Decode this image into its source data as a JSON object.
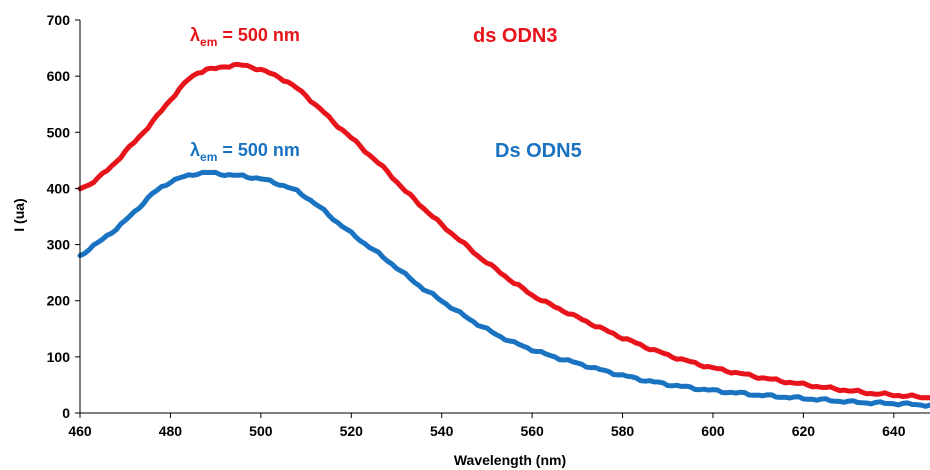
{
  "chart_data": {
    "type": "line",
    "title": "",
    "xlabel": "Wavelength (nm)",
    "ylabel": "I (ua)",
    "xlim": [
      460,
      648
    ],
    "ylim": [
      0,
      700
    ],
    "x_ticks": [
      "460",
      "480",
      "500",
      "520",
      "540",
      "560",
      "580",
      "600",
      "620",
      "640"
    ],
    "y_ticks": [
      "0",
      "100",
      "200",
      "300",
      "400",
      "500",
      "600",
      "700"
    ],
    "grid": false,
    "legend": "none",
    "series": [
      {
        "name": "ds ODN3",
        "color": "#e8141b",
        "x": [
          460,
          462,
          464,
          466,
          468,
          470,
          472,
          474,
          476,
          478,
          480,
          482,
          484,
          486,
          488,
          490,
          492,
          494,
          496,
          498,
          500,
          502,
          504,
          506,
          508,
          510,
          512,
          514,
          516,
          518,
          520,
          524,
          528,
          532,
          536,
          540,
          544,
          548,
          552,
          556,
          560,
          564,
          568,
          572,
          576,
          580,
          585,
          590,
          595,
          600,
          605,
          610,
          615,
          620,
          625,
          630,
          635,
          640,
          645,
          648
        ],
        "y": [
          400,
          407,
          418,
          432,
          448,
          465,
          482,
          500,
          518,
          538,
          558,
          577,
          594,
          606,
          612,
          613,
          617,
          620,
          619,
          616,
          612,
          605,
          598,
          590,
          578,
          565,
          550,
          535,
          518,
          505,
          490,
          460,
          430,
          395,
          365,
          335,
          308,
          280,
          256,
          232,
          210,
          193,
          178,
          163,
          148,
          134,
          118,
          103,
          91,
          80,
          72,
          64,
          57,
          51,
          45,
          40,
          35,
          32,
          29,
          27
        ]
      },
      {
        "name": "Ds ODN5",
        "color": "#1a73c1",
        "x": [
          460,
          462,
          464,
          466,
          468,
          470,
          472,
          474,
          476,
          478,
          480,
          482,
          484,
          486,
          488,
          490,
          492,
          494,
          496,
          498,
          500,
          502,
          504,
          506,
          508,
          510,
          512,
          514,
          516,
          518,
          520,
          524,
          528,
          532,
          536,
          540,
          544,
          548,
          552,
          556,
          560,
          564,
          568,
          572,
          576,
          580,
          585,
          590,
          595,
          600,
          605,
          610,
          615,
          620,
          625,
          630,
          635,
          640,
          645,
          648
        ],
        "y": [
          280,
          292,
          303,
          316,
          328,
          342,
          358,
          374,
          390,
          402,
          412,
          418,
          423,
          427,
          428,
          427,
          425,
          423,
          422,
          420,
          417,
          413,
          408,
          402,
          395,
          385,
          373,
          360,
          346,
          333,
          320,
          296,
          272,
          246,
          221,
          200,
          178,
          158,
          140,
          125,
          113,
          102,
          93,
          84,
          75,
          67,
          58,
          51,
          45,
          40,
          36,
          32,
          29,
          26,
          23,
          20,
          18,
          17,
          15,
          14
        ]
      }
    ],
    "annotations": [
      {
        "label": "λem = 500 nm",
        "color": "#e8141b",
        "series": "ds ODN3"
      },
      {
        "label": "ds ODN3",
        "color": "#e8141b"
      },
      {
        "label": "λem = 500 nm",
        "color": "#1a73c1",
        "series": "Ds ODN5"
      },
      {
        "label": "Ds ODN5",
        "color": "#1a73c1"
      }
    ]
  }
}
